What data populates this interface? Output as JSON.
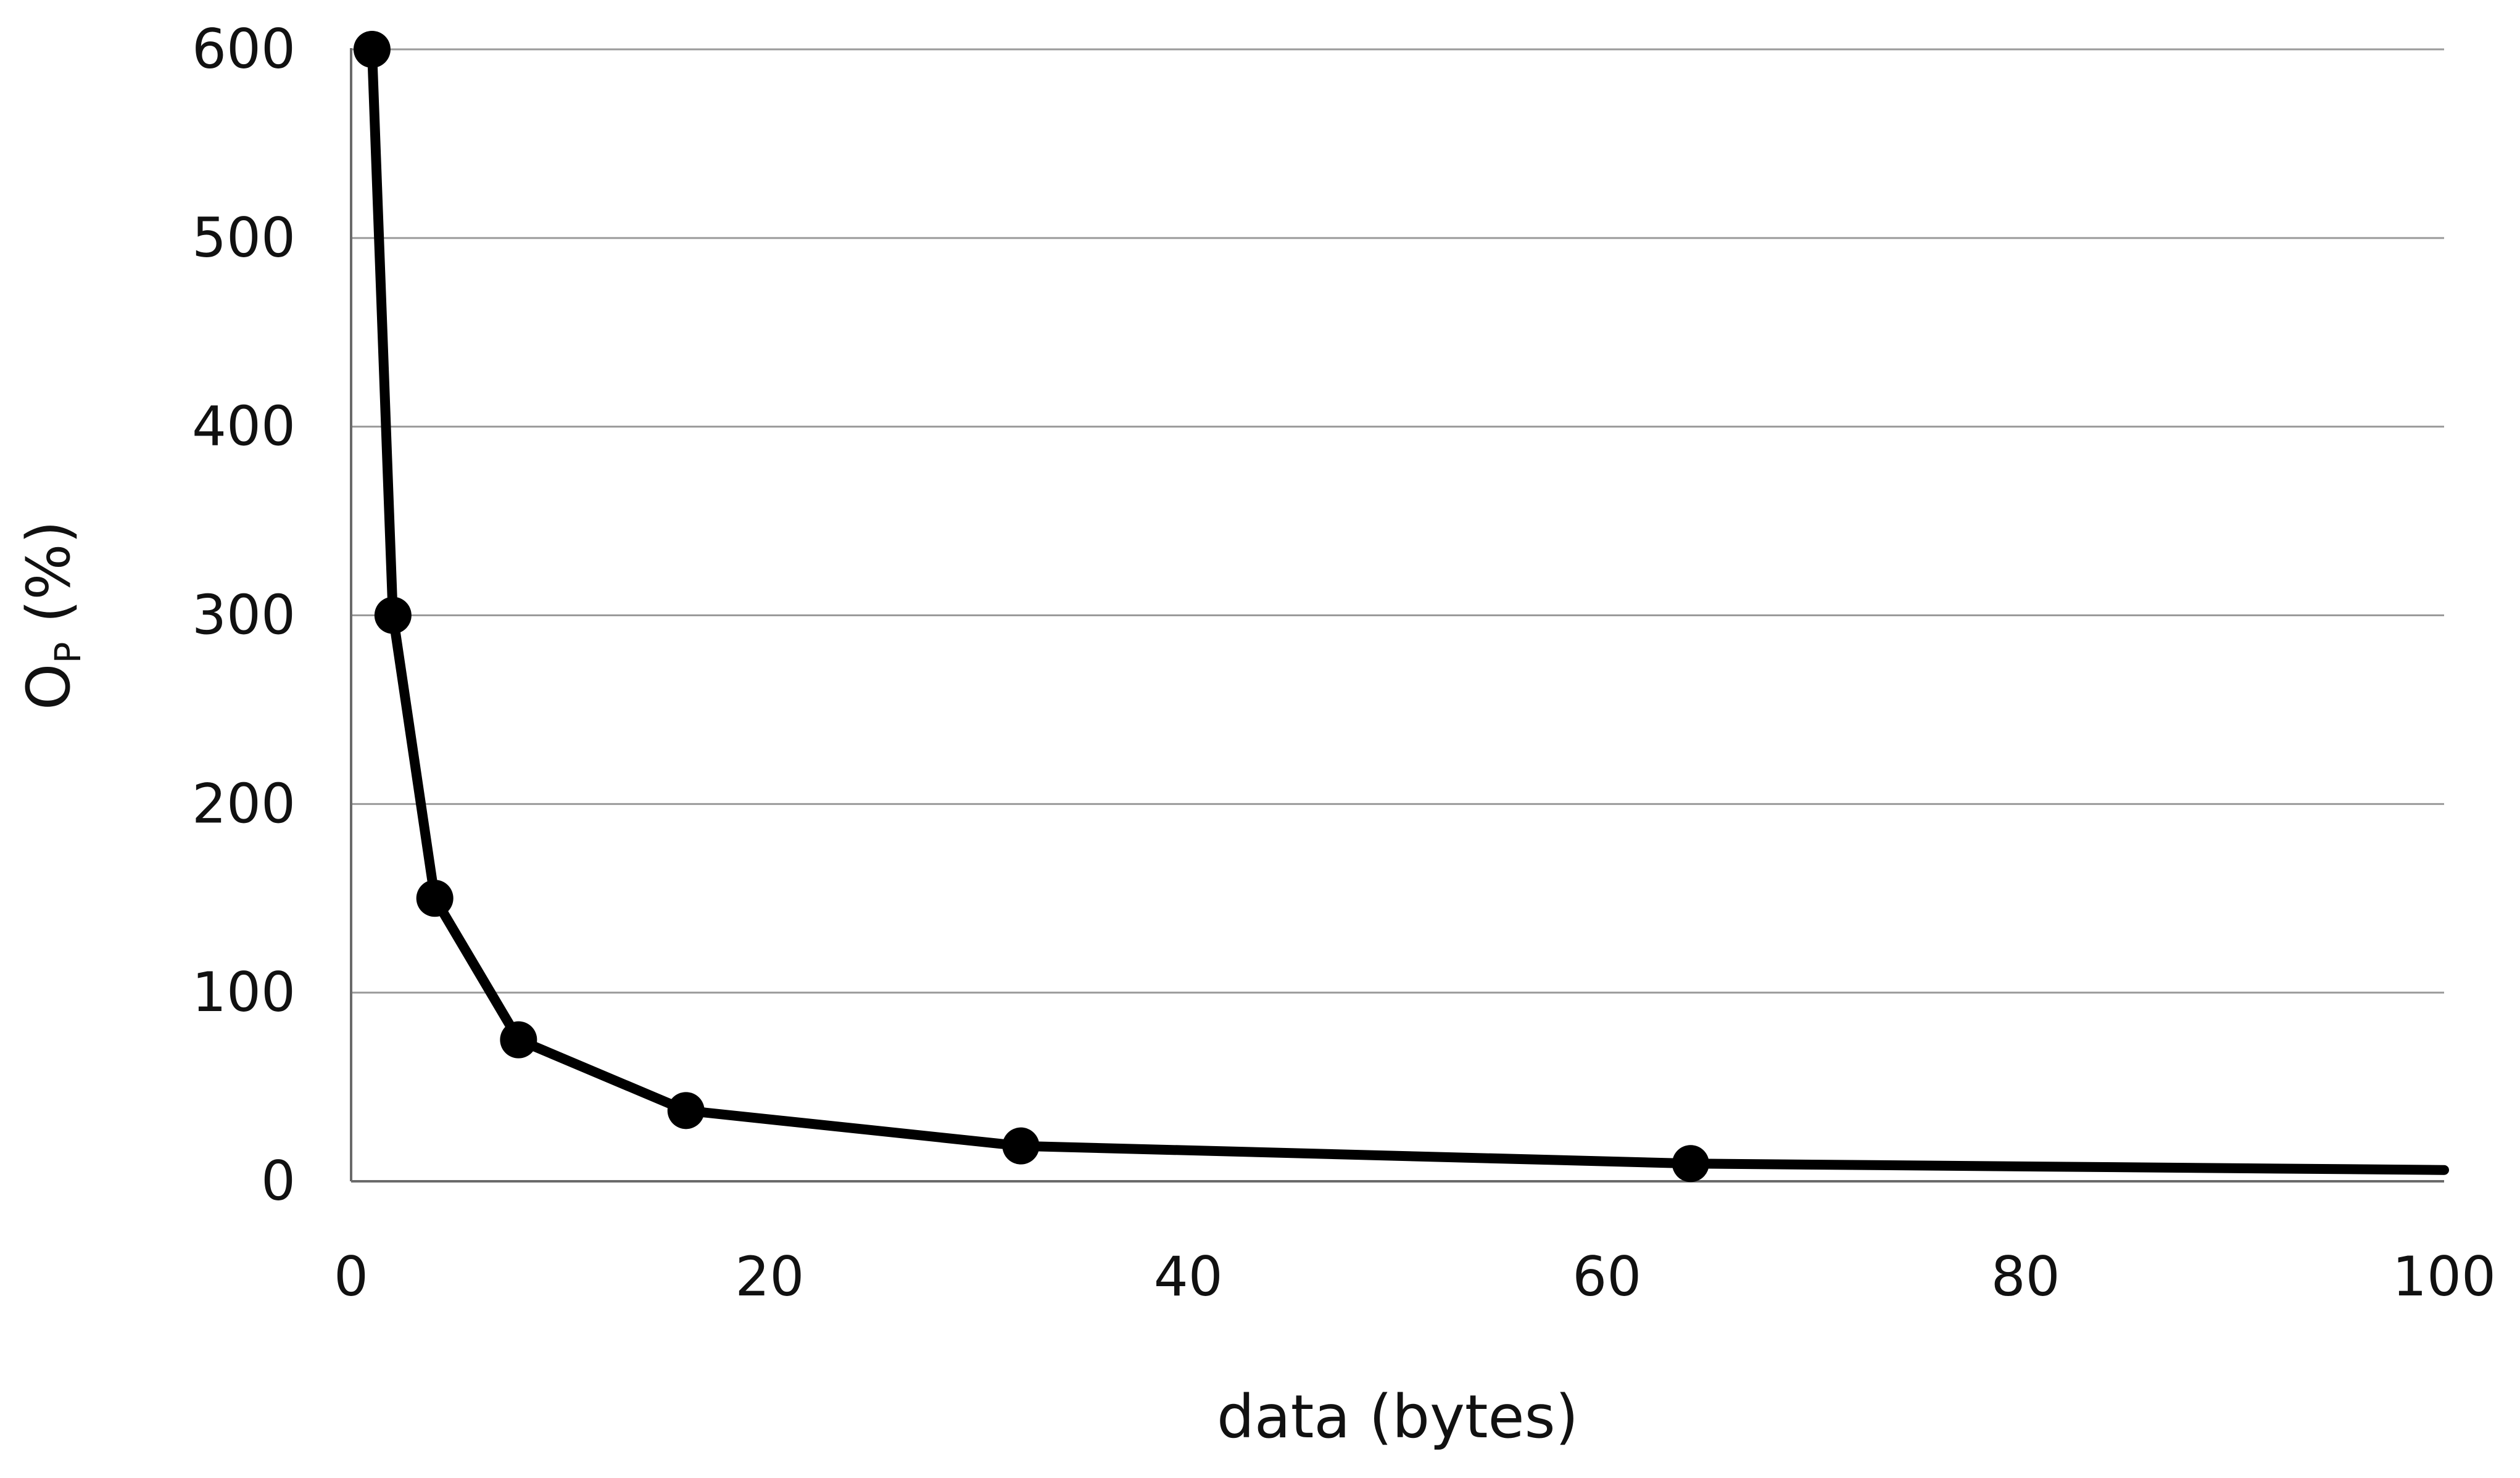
{
  "chart_data": {
    "type": "line",
    "title": "",
    "xlabel": "data (bytes)",
    "ylabel": {
      "main": "O",
      "subscript": "P",
      "suffix": " (%)"
    },
    "xlim": [
      0,
      100
    ],
    "ylim": [
      0,
      600
    ],
    "xticks": [
      0,
      20,
      40,
      60,
      80,
      100
    ],
    "yticks": [
      0,
      100,
      200,
      300,
      400,
      500,
      600
    ],
    "grid": "horizontal",
    "legend": "none",
    "series": [
      {
        "color": "#000000",
        "markers": "circle",
        "points": [
          {
            "x": 1,
            "y": 600
          },
          {
            "x": 2,
            "y": 300
          },
          {
            "x": 4,
            "y": 150
          },
          {
            "x": 8,
            "y": 75
          },
          {
            "x": 16,
            "y": 37.5
          },
          {
            "x": 32,
            "y": 18.75
          },
          {
            "x": 64,
            "y": 9.4
          }
        ],
        "line_to": {
          "x": 100,
          "y": 6
        }
      }
    ]
  }
}
